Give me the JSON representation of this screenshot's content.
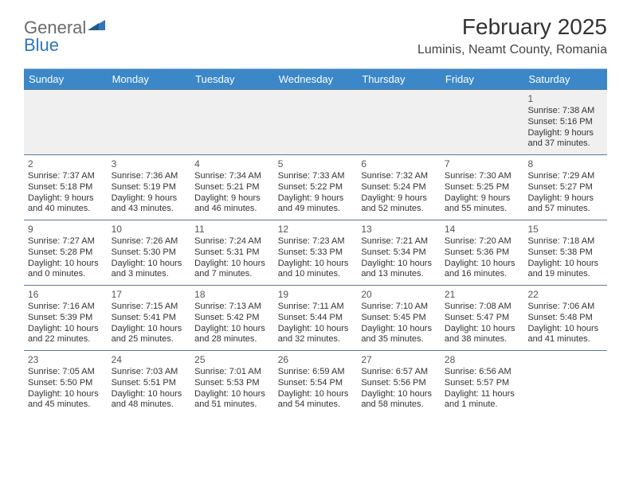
{
  "logo": {
    "text1": "General",
    "text2": "Blue"
  },
  "title": "February 2025",
  "location": "Luminis, Neamt County, Romania",
  "colors": {
    "header_bg": "#3b87c8",
    "header_text": "#ffffff",
    "border": "#5a7a9a",
    "firstweek_bg": "#f0f0f0",
    "text": "#333333",
    "logo_gray": "#6a6a6a",
    "logo_blue": "#2e77b8"
  },
  "day_headers": [
    "Sunday",
    "Monday",
    "Tuesday",
    "Wednesday",
    "Thursday",
    "Friday",
    "Saturday"
  ],
  "weeks": [
    [
      null,
      null,
      null,
      null,
      null,
      null,
      {
        "n": "1",
        "sr": "Sunrise: 7:38 AM",
        "ss": "Sunset: 5:16 PM",
        "dl": "Daylight: 9 hours and 37 minutes."
      }
    ],
    [
      {
        "n": "2",
        "sr": "Sunrise: 7:37 AM",
        "ss": "Sunset: 5:18 PM",
        "dl": "Daylight: 9 hours and 40 minutes."
      },
      {
        "n": "3",
        "sr": "Sunrise: 7:36 AM",
        "ss": "Sunset: 5:19 PM",
        "dl": "Daylight: 9 hours and 43 minutes."
      },
      {
        "n": "4",
        "sr": "Sunrise: 7:34 AM",
        "ss": "Sunset: 5:21 PM",
        "dl": "Daylight: 9 hours and 46 minutes."
      },
      {
        "n": "5",
        "sr": "Sunrise: 7:33 AM",
        "ss": "Sunset: 5:22 PM",
        "dl": "Daylight: 9 hours and 49 minutes."
      },
      {
        "n": "6",
        "sr": "Sunrise: 7:32 AM",
        "ss": "Sunset: 5:24 PM",
        "dl": "Daylight: 9 hours and 52 minutes."
      },
      {
        "n": "7",
        "sr": "Sunrise: 7:30 AM",
        "ss": "Sunset: 5:25 PM",
        "dl": "Daylight: 9 hours and 55 minutes."
      },
      {
        "n": "8",
        "sr": "Sunrise: 7:29 AM",
        "ss": "Sunset: 5:27 PM",
        "dl": "Daylight: 9 hours and 57 minutes."
      }
    ],
    [
      {
        "n": "9",
        "sr": "Sunrise: 7:27 AM",
        "ss": "Sunset: 5:28 PM",
        "dl": "Daylight: 10 hours and 0 minutes."
      },
      {
        "n": "10",
        "sr": "Sunrise: 7:26 AM",
        "ss": "Sunset: 5:30 PM",
        "dl": "Daylight: 10 hours and 3 minutes."
      },
      {
        "n": "11",
        "sr": "Sunrise: 7:24 AM",
        "ss": "Sunset: 5:31 PM",
        "dl": "Daylight: 10 hours and 7 minutes."
      },
      {
        "n": "12",
        "sr": "Sunrise: 7:23 AM",
        "ss": "Sunset: 5:33 PM",
        "dl": "Daylight: 10 hours and 10 minutes."
      },
      {
        "n": "13",
        "sr": "Sunrise: 7:21 AM",
        "ss": "Sunset: 5:34 PM",
        "dl": "Daylight: 10 hours and 13 minutes."
      },
      {
        "n": "14",
        "sr": "Sunrise: 7:20 AM",
        "ss": "Sunset: 5:36 PM",
        "dl": "Daylight: 10 hours and 16 minutes."
      },
      {
        "n": "15",
        "sr": "Sunrise: 7:18 AM",
        "ss": "Sunset: 5:38 PM",
        "dl": "Daylight: 10 hours and 19 minutes."
      }
    ],
    [
      {
        "n": "16",
        "sr": "Sunrise: 7:16 AM",
        "ss": "Sunset: 5:39 PM",
        "dl": "Daylight: 10 hours and 22 minutes."
      },
      {
        "n": "17",
        "sr": "Sunrise: 7:15 AM",
        "ss": "Sunset: 5:41 PM",
        "dl": "Daylight: 10 hours and 25 minutes."
      },
      {
        "n": "18",
        "sr": "Sunrise: 7:13 AM",
        "ss": "Sunset: 5:42 PM",
        "dl": "Daylight: 10 hours and 28 minutes."
      },
      {
        "n": "19",
        "sr": "Sunrise: 7:11 AM",
        "ss": "Sunset: 5:44 PM",
        "dl": "Daylight: 10 hours and 32 minutes."
      },
      {
        "n": "20",
        "sr": "Sunrise: 7:10 AM",
        "ss": "Sunset: 5:45 PM",
        "dl": "Daylight: 10 hours and 35 minutes."
      },
      {
        "n": "21",
        "sr": "Sunrise: 7:08 AM",
        "ss": "Sunset: 5:47 PM",
        "dl": "Daylight: 10 hours and 38 minutes."
      },
      {
        "n": "22",
        "sr": "Sunrise: 7:06 AM",
        "ss": "Sunset: 5:48 PM",
        "dl": "Daylight: 10 hours and 41 minutes."
      }
    ],
    [
      {
        "n": "23",
        "sr": "Sunrise: 7:05 AM",
        "ss": "Sunset: 5:50 PM",
        "dl": "Daylight: 10 hours and 45 minutes."
      },
      {
        "n": "24",
        "sr": "Sunrise: 7:03 AM",
        "ss": "Sunset: 5:51 PM",
        "dl": "Daylight: 10 hours and 48 minutes."
      },
      {
        "n": "25",
        "sr": "Sunrise: 7:01 AM",
        "ss": "Sunset: 5:53 PM",
        "dl": "Daylight: 10 hours and 51 minutes."
      },
      {
        "n": "26",
        "sr": "Sunrise: 6:59 AM",
        "ss": "Sunset: 5:54 PM",
        "dl": "Daylight: 10 hours and 54 minutes."
      },
      {
        "n": "27",
        "sr": "Sunrise: 6:57 AM",
        "ss": "Sunset: 5:56 PM",
        "dl": "Daylight: 10 hours and 58 minutes."
      },
      {
        "n": "28",
        "sr": "Sunrise: 6:56 AM",
        "ss": "Sunset: 5:57 PM",
        "dl": "Daylight: 11 hours and 1 minute."
      },
      null
    ]
  ]
}
